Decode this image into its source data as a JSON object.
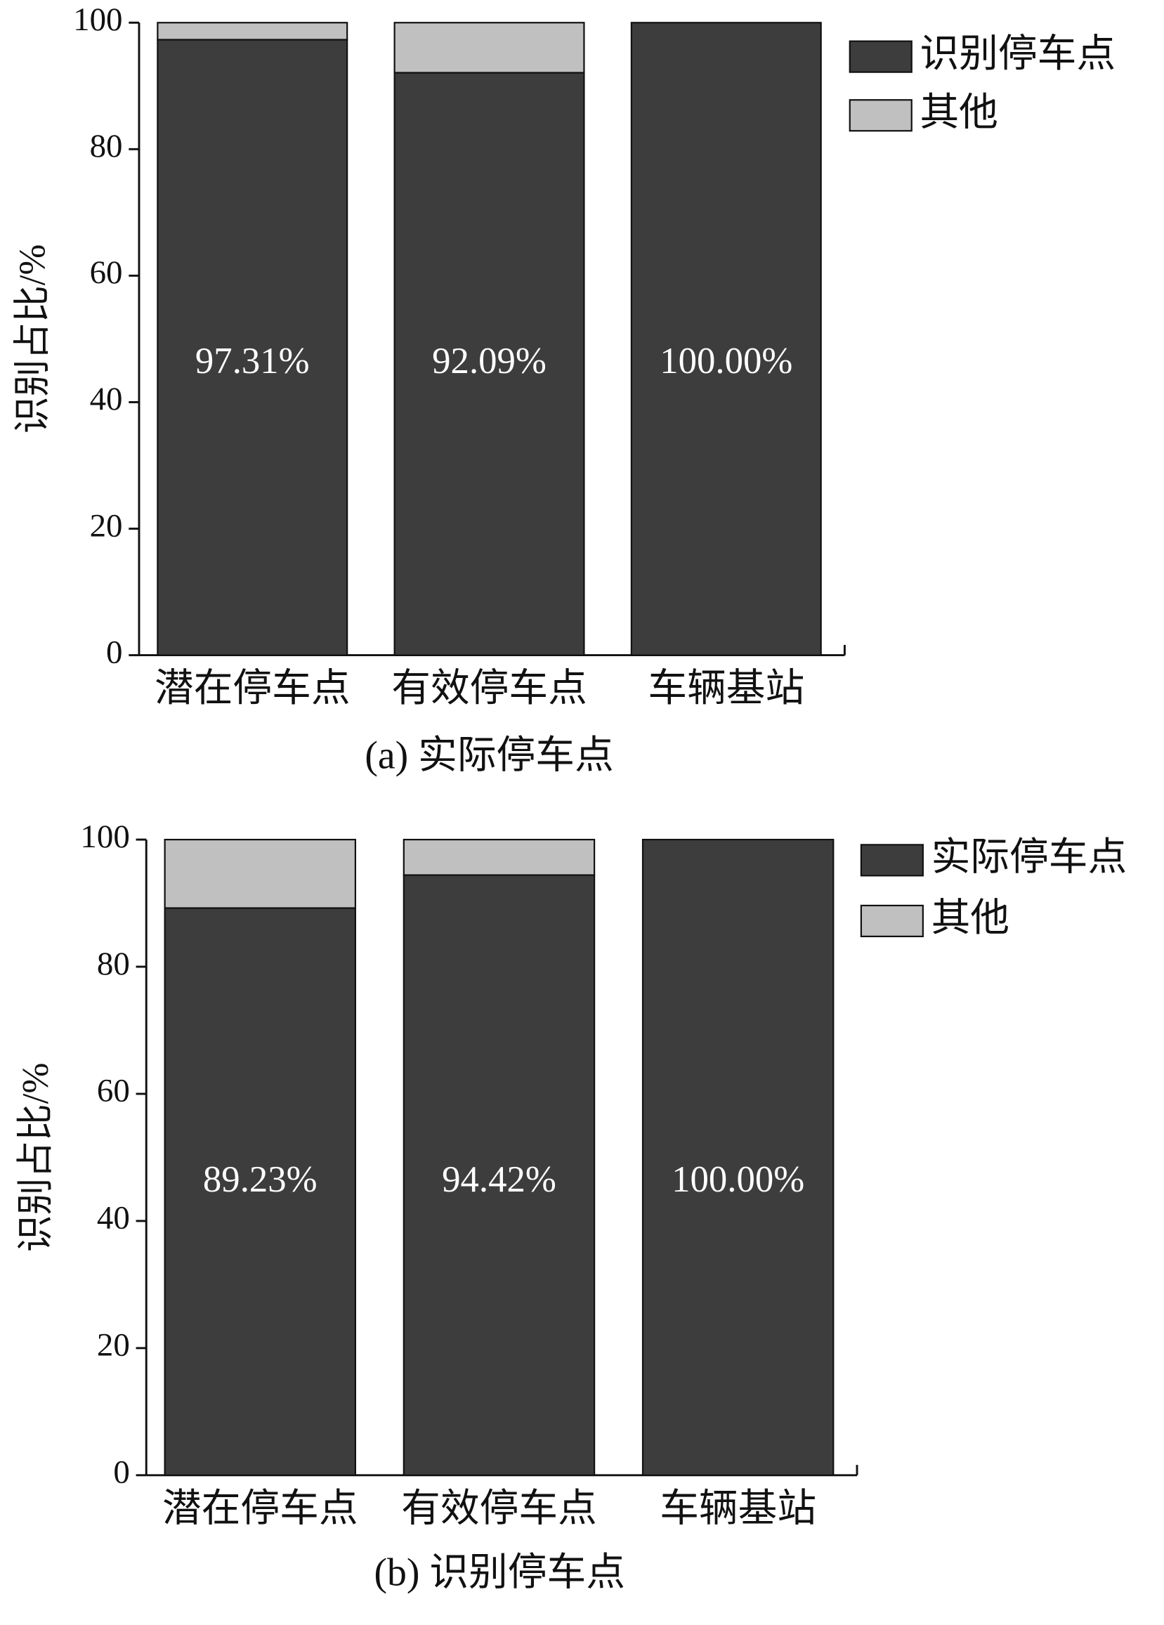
{
  "chart_data": [
    {
      "type": "stacked_bar",
      "caption": "(a) 实际停车点",
      "ylabel": "识别占比/%",
      "categories": [
        "潜在停车点",
        "有效停车点",
        "车辆基站"
      ],
      "series": [
        {
          "name": "识别停车点",
          "color": "#3d3d3d",
          "values": [
            97.31,
            92.09,
            100
          ],
          "value_labels": [
            "97.31%",
            "92.09%",
            "100.00%"
          ]
        },
        {
          "name": "其他",
          "color": "#c0c0c0",
          "values": [
            2.69,
            7.91,
            0
          ]
        }
      ],
      "ylim": [
        0,
        100
      ],
      "yticks": [
        0,
        20,
        40,
        60,
        80,
        100
      ],
      "legend": "upper right"
    },
    {
      "type": "stacked_bar",
      "caption": "(b) 识别停车点",
      "ylabel": "识别占比/%",
      "categories": [
        "潜在停车点",
        "有效停车点",
        "车辆基站"
      ],
      "series": [
        {
          "name": "实际停车点",
          "color": "#3d3d3d",
          "values": [
            89.23,
            94.42,
            100
          ],
          "value_labels": [
            "89.23%",
            "94.42%",
            "100.00%"
          ]
        },
        {
          "name": "其他",
          "color": "#c0c0c0",
          "values": [
            10.77,
            5.58,
            0
          ]
        }
      ],
      "ylim": [
        0,
        100
      ],
      "yticks": [
        0,
        20,
        40,
        60,
        80,
        100
      ],
      "legend": "upper right"
    }
  ]
}
